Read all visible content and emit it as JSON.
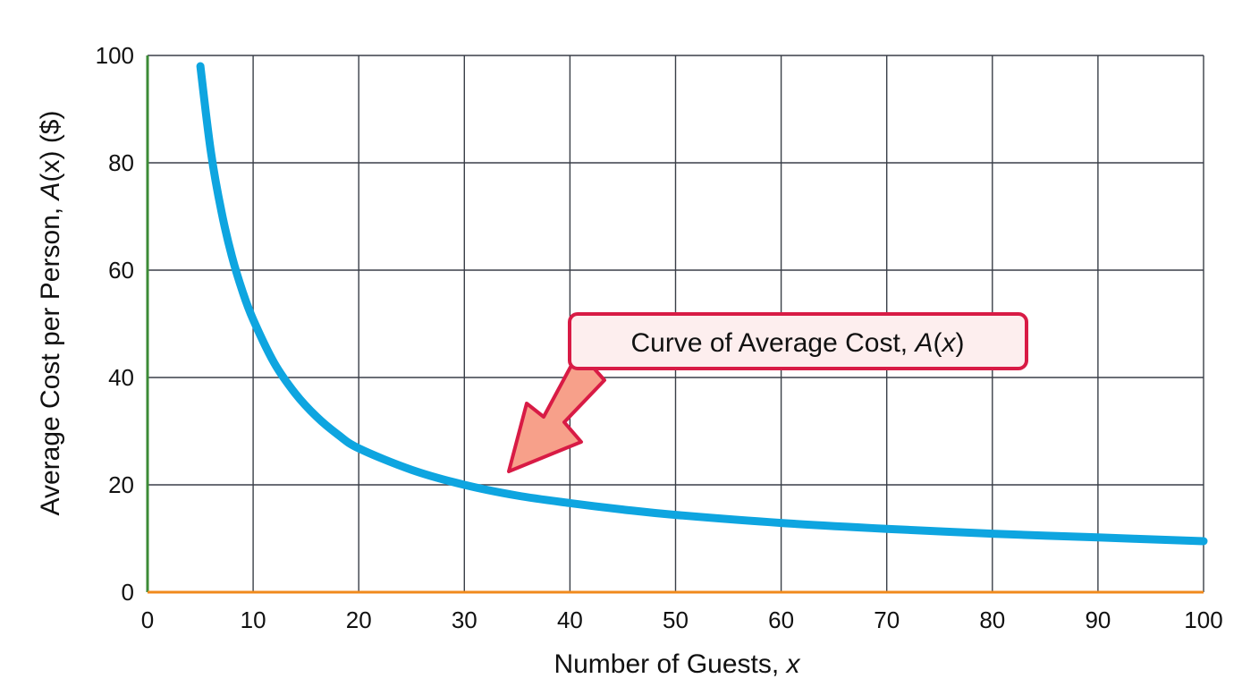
{
  "chart_data": {
    "type": "line",
    "title": "",
    "xlabel": "Number of Guests, ",
    "xlabel_var": "x",
    "ylabel": "Average Cost per Person, ",
    "ylabel_func": "A",
    "ylabel_tail": "(x) ($)",
    "xlim": [
      0,
      100
    ],
    "ylim": [
      0,
      100
    ],
    "xticks": [
      0,
      10,
      20,
      30,
      40,
      50,
      60,
      70,
      80,
      90,
      100
    ],
    "yticks": [
      0,
      20,
      40,
      60,
      80,
      100
    ],
    "grid": true,
    "series": [
      {
        "x": [
          5,
          6,
          7,
          8,
          9,
          10,
          12,
          14,
          16,
          18,
          20,
          25,
          30,
          35,
          40,
          45,
          50,
          60,
          70,
          80,
          90,
          100
        ],
        "values": [
          98,
          82,
          70.9,
          62.5,
          56,
          50.8,
          42.7,
          37,
          32.7,
          29.4,
          26.8,
          22.8,
          20,
          18,
          16.6,
          15.4,
          14.4,
          12.9,
          11.8,
          10.9,
          10.2,
          9.5
        ]
      }
    ],
    "annotations": [
      {
        "text_before": "Curve of Average Cost, ",
        "text_func": "A",
        "text_paren_open": "(",
        "text_var": "x",
        "text_paren_close": ")",
        "target": [
          34,
          22
        ]
      }
    ]
  },
  "colors": {
    "curve": "#0ea5e0",
    "grid": "#3a3f48",
    "y_axis": "#3d8b37",
    "x_axis": "#f08a1c",
    "callout_border": "#d81b45",
    "callout_fill": "#fdeeee",
    "arrow_fill": "#f7a08a"
  }
}
